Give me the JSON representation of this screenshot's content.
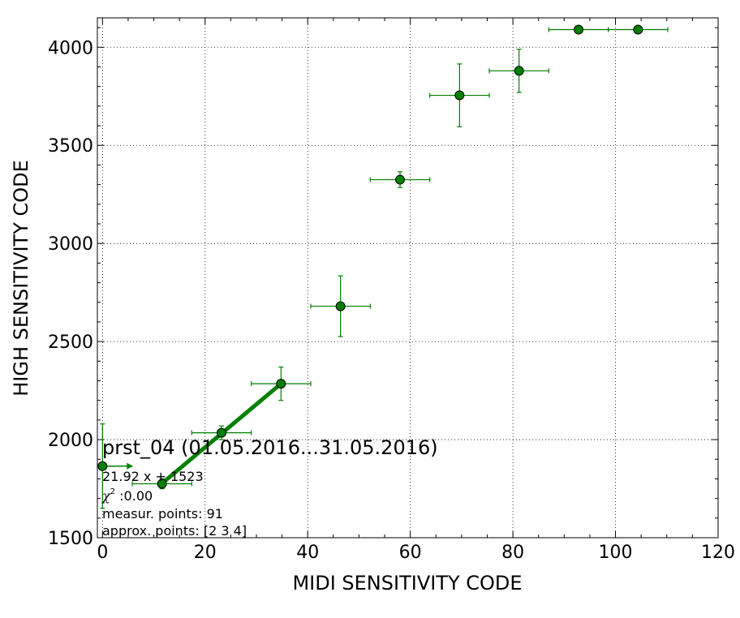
{
  "chart_data": {
    "type": "scatter",
    "title": "",
    "xlabel": "MIDI SENSITIVITY CODE",
    "ylabel": "HIGH SENSITIVITY CODE",
    "xlim": [
      -1,
      120
    ],
    "ylim": [
      1500,
      4150
    ],
    "x_ticks": [
      "0",
      "20",
      "40",
      "60",
      "80",
      "100",
      "120"
    ],
    "y_ticks": [
      "1500",
      "2000",
      "2500",
      "3000",
      "3500",
      "4000"
    ],
    "grid": true,
    "color": "#008000",
    "series": [
      {
        "points": [
          {
            "x": 0.0,
            "y": 1865,
            "xerr": 0,
            "yerr": 215
          },
          {
            "x": 11.6,
            "y": 1775,
            "xerr": 5.8,
            "yerr": 25
          },
          {
            "x": 23.2,
            "y": 2035,
            "xerr": 5.8,
            "yerr": 35
          },
          {
            "x": 34.8,
            "y": 2285,
            "xerr": 5.8,
            "yerr": 85
          },
          {
            "x": 46.4,
            "y": 2680,
            "xerr": 5.8,
            "yerr": 155
          },
          {
            "x": 58.0,
            "y": 3325,
            "xerr": 5.8,
            "yerr": 40
          },
          {
            "x": 69.6,
            "y": 3755,
            "xerr": 5.8,
            "yerr": 160
          },
          {
            "x": 81.2,
            "y": 3880,
            "xerr": 5.8,
            "yerr": 110
          },
          {
            "x": 92.8,
            "y": 4090,
            "xerr": 5.8,
            "yerr": 0
          },
          {
            "x": 104.4,
            "y": 4090,
            "xerr": 5.8,
            "yerr": 0
          }
        ]
      }
    ],
    "fit_line": {
      "x": [
        11.6,
        34.8
      ],
      "y": [
        1777,
        2285
      ]
    },
    "arrow": {
      "x": [
        0,
        6
      ],
      "y": [
        1865,
        1865
      ]
    },
    "annotations": {
      "title": "prst_04 (01.05.2016...31.05.2016)",
      "equation": "21.92 x + 1523",
      "chi_symbol": "χ",
      "chi_exp": "2",
      "chi_value": " :0.00",
      "measur_points": "measur. points: 91",
      "approx_points": "approx. points: [2 3 4]"
    }
  }
}
